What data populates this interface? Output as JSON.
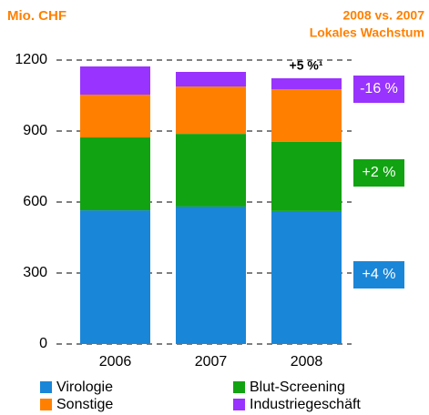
{
  "chart_data": {
    "type": "bar",
    "stacked": true,
    "title": "Mio. CHF",
    "subtitle": [
      "2008 vs. 2007",
      "Lokales Wachstum"
    ],
    "categories": [
      "2006",
      "2007",
      "2008"
    ],
    "series": [
      {
        "name": "Virologie",
        "color": "#1a86d8",
        "values": [
          565,
          581,
          562
        ]
      },
      {
        "name": "Blut-Screening",
        "color": "#11a311",
        "values": [
          308,
          307,
          292
        ]
      },
      {
        "name": "Sonstige",
        "color": "#ff8000",
        "values": [
          181,
          200,
          223
        ]
      },
      {
        "name": "Industriegeschäft",
        "color": "#9933ff",
        "values": [
          119,
          62,
          46
        ]
      }
    ],
    "ylim": [
      0,
      1200
    ],
    "yticks": [
      0,
      300,
      600,
      900,
      1200
    ],
    "grid": true,
    "annotation": "+5 %¹",
    "growth_labels": [
      {
        "label": "-16 %",
        "color": "#9933ff"
      },
      {
        "label": "+2 %",
        "color": "#11a311"
      },
      {
        "label": "+4 %",
        "color": "#1a86d8"
      }
    ]
  }
}
